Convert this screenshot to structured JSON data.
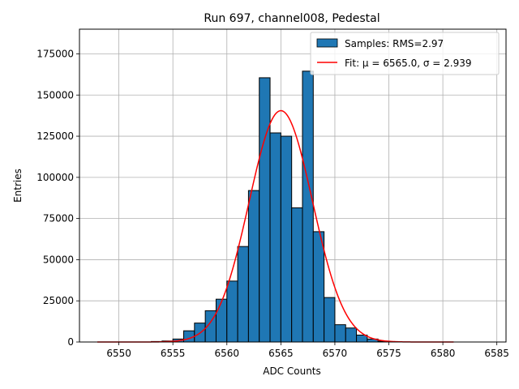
{
  "chart_data": {
    "type": "bar",
    "title": "Run 697, channel008, Pedestal",
    "xlabel": "ADC Counts",
    "ylabel": "Entries",
    "xlim": [
      6546.35,
      6585.85
    ],
    "ylim": [
      0,
      190000
    ],
    "grid": true,
    "legend_position": "top-right",
    "x_ticks": [
      6550,
      6555,
      6560,
      6565,
      6570,
      6575,
      6580,
      6585
    ],
    "y_ticks": [
      0,
      25000,
      50000,
      75000,
      100000,
      125000,
      150000,
      175000
    ],
    "bin_width": 1,
    "bin_left_edges": [
      6553,
      6554,
      6555,
      6556,
      6557,
      6558,
      6559,
      6560,
      6561,
      6562,
      6563,
      6564,
      6565,
      6566,
      6567,
      6568,
      6569,
      6570,
      6571,
      6572,
      6573,
      6574
    ],
    "values": [
      300,
      600,
      1800,
      6800,
      11500,
      19000,
      26000,
      37000,
      58000,
      92000,
      160500,
      127000,
      125000,
      81500,
      164500,
      67000,
      27000,
      10500,
      8500,
      4200,
      1800,
      500
    ],
    "series": [
      {
        "name": "Samples: RMS=2.97",
        "kind": "histogram",
        "color": "#1f77b4",
        "edgecolor": "#000000"
      },
      {
        "name": "Fit: μ = 6565.0, σ = 2.939",
        "kind": "line",
        "color": "#ff0000",
        "model": "gaussian",
        "mu": 6565.0,
        "sigma": 2.939,
        "amplitude": 140500,
        "x_range": [
          6548,
          6581
        ]
      }
    ]
  }
}
